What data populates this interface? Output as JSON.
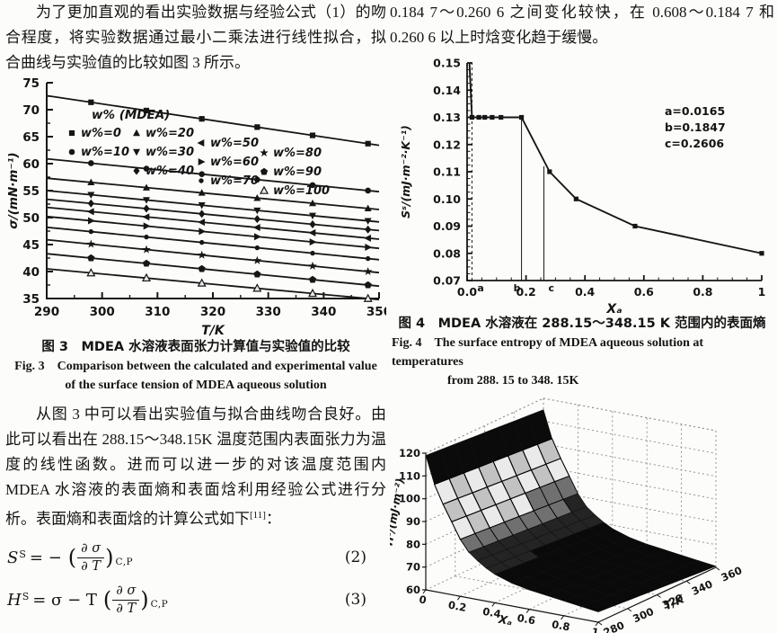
{
  "paragraphs": {
    "p1": "为了更加直观的看出实验数据与经验公式（1）的吻合程度，将实验数据通过最小二乘法进行线性拟合，拟合曲线与实验值的比较如图 3 所示。",
    "p2_main": "从图 3 中可以看出实验值与拟合曲线吻合良好。由此可以看出在 288.15～348.15K 温度范围内表面张力为温度的线性函数。进而可以进一步的对该温度范围内 MDEA 水溶液的表面熵和表面焓利用经验公式进行分析。表面熵和表面焓的计算公式如下",
    "p2_sup": "[11]",
    "p2_tail": "：",
    "p3": "0.184 7～0.260 6 之间变化较快，在 0.608～0.184 7 和 0.260 6 以上时焓变化趋于缓慢。"
  },
  "captions": {
    "fig3_zh": "图 3　MDEA 水溶液表面张力计算值与实验值的比较",
    "fig3_en_l1": "Fig. 3　Comparison between the calculated and experimental value",
    "fig3_en_l2": "of the surface tension of MDEA aqueous solution",
    "fig4_zh": "图 4　MDEA 水溶液在 288.15～348.15 K 范围内的表面熵",
    "fig4_en_l1": "Fig. 4　The surface entropy of MDEA aqueous solution at temperatures",
    "fig4_en_l2": "from 288. 15 to 348. 15K"
  },
  "equations": {
    "eq2": {
      "sym": "S",
      "sup": "S",
      "eq": "= −",
      "open": "(",
      "num": "∂ σ",
      "den": "∂ T",
      "close": ")",
      "sub": "C,P",
      "tag": "(2)"
    },
    "eq3": {
      "sym": "H",
      "sup": "S",
      "eq": "= σ − T",
      "open": "(",
      "num": "∂ σ",
      "den": "∂ T",
      "close": ")",
      "sub": "C,P",
      "tag": "(3)"
    }
  },
  "chart_data": [
    {
      "id": "fig3",
      "type": "line",
      "title": "",
      "xlabel": "T/K",
      "ylabel": "σ/(mN·m⁻¹)",
      "xlim": [
        290,
        350
      ],
      "ylim": [
        35,
        75
      ],
      "xticks": [
        290,
        300,
        310,
        320,
        330,
        340,
        350
      ],
      "yticks": [
        35,
        40,
        45,
        50,
        55,
        60,
        65,
        70,
        75
      ],
      "legend_title": "w% (MDEA)",
      "marker_x": [
        298,
        308,
        318,
        328,
        338,
        348
      ],
      "line_x": [
        290,
        350
      ],
      "series": [
        {
          "name": "w%=0",
          "marker": "square",
          "values": [
            72.6,
            63.4
          ]
        },
        {
          "name": "w%=10",
          "marker": "circle",
          "values": [
            60.9,
            54.8
          ]
        },
        {
          "name": "w%=20",
          "marker": "triangle-up",
          "values": [
            57.3,
            51.5
          ]
        },
        {
          "name": "w%=30",
          "marker": "triangle-down",
          "values": [
            55.0,
            49.2
          ]
        },
        {
          "name": "w%=40",
          "marker": "diamond",
          "values": [
            53.4,
            47.6
          ]
        },
        {
          "name": "w%=50",
          "marker": "triangle-left",
          "values": [
            51.9,
            46.0
          ]
        },
        {
          "name": "w%=60",
          "marker": "triangle-right",
          "values": [
            50.2,
            44.3
          ]
        },
        {
          "name": "w%=70",
          "marker": "circle-small",
          "values": [
            48.2,
            42.2
          ]
        },
        {
          "name": "w%=80",
          "marker": "star",
          "values": [
            45.9,
            39.8
          ]
        },
        {
          "name": "w%=90",
          "marker": "pentagon",
          "values": [
            43.3,
            37.3
          ]
        },
        {
          "name": "w%=100",
          "marker": "triangle-open",
          "values": [
            40.5,
            34.8
          ]
        }
      ]
    },
    {
      "id": "fig4",
      "type": "line",
      "xlabel": "Xₐ",
      "ylabel": "Sˢ/(mJ·m⁻²·K⁻¹)",
      "xlim": [
        0,
        1
      ],
      "ylim": [
        0.07,
        0.15
      ],
      "xticks": [
        0,
        0.2,
        0.4,
        0.6,
        0.8,
        1
      ],
      "xtick_labels": [
        "0.0",
        "0.2",
        "0.4",
        "0.6",
        "0.8",
        "1"
      ],
      "yticks": [
        0.07,
        0.08,
        0.09,
        0.1,
        0.11,
        0.12,
        0.13,
        0.14,
        0.15
      ],
      "points": [
        [
          0.008,
          0.15
        ],
        [
          0.0165,
          0.13
        ],
        [
          0.04,
          0.13
        ],
        [
          0.06,
          0.13
        ],
        [
          0.085,
          0.13
        ],
        [
          0.115,
          0.13
        ],
        [
          0.1847,
          0.13
        ],
        [
          0.28,
          0.11
        ],
        [
          0.37,
          0.1
        ],
        [
          0.57,
          0.09
        ],
        [
          1.0,
          0.08
        ]
      ],
      "marker_from": 1,
      "guides": [
        {
          "x": 0.0165,
          "y_top": 0.15,
          "dash": true,
          "label": "a"
        },
        {
          "x": 0.1847,
          "y_top": 0.13,
          "dash": false,
          "label": "b"
        },
        {
          "x": 0.2606,
          "y_top": 0.112,
          "dash": false,
          "label": "c"
        }
      ],
      "annotation_lines": [
        "a=0.0165",
        "b=0.1847",
        "c=0.2606"
      ]
    },
    {
      "id": "fig5",
      "type": "surface3d",
      "zlabel": "Hˢ/(mJ·m⁻²)",
      "xlabel": "Xₐ",
      "ylabel": "T/K",
      "z_ticks": [
        60,
        70,
        80,
        90,
        100,
        110,
        120
      ],
      "x_tick_vals": [
        0,
        0.2,
        0.4,
        0.6,
        0.8,
        1
      ],
      "x_tick_labels": [
        "0",
        "0.2",
        "0.4",
        "0.6",
        "0.8",
        "1"
      ],
      "t_tick_vals": [
        280,
        300,
        320,
        340,
        360
      ],
      "t_tick_labels": [
        "280",
        "300",
        "320",
        "340",
        "360"
      ],
      "x_grid": [
        0,
        0.05,
        0.1,
        0.15,
        0.2,
        0.25,
        0.3,
        0.35,
        0.4,
        0.5,
        0.6,
        0.7,
        0.8,
        0.9,
        1
      ],
      "t_grid": [
        280,
        290,
        300,
        310,
        320,
        330,
        340,
        350,
        360
      ],
      "h_at_280": [
        119,
        107,
        99,
        92,
        85,
        80,
        77,
        74.5,
        72.5,
        70,
        68.5,
        67.5,
        66.5,
        65.5,
        64.5
      ],
      "h_drop_to_360": 4,
      "zlim": [
        60,
        120
      ]
    }
  ]
}
